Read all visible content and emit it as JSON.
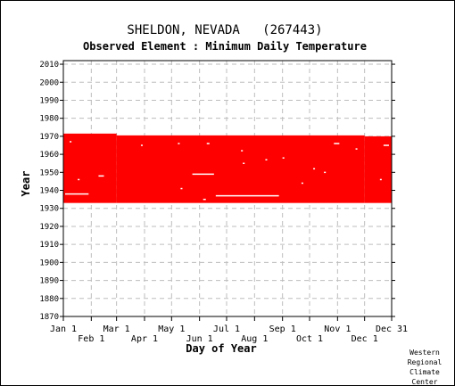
{
  "chart_data": {
    "type": "scatter",
    "title": "SHELDON, NEVADA   (267443)",
    "subtitle": "Observed Element : Minimum Daily Temperature",
    "xlabel": "Day of Year",
    "ylabel": "Year",
    "credit": [
      "Western",
      "Regional",
      "Climate",
      "Center"
    ],
    "xlim": [
      1,
      365
    ],
    "ylim": [
      1870,
      2012
    ],
    "x_ticks_upper": [
      {
        "label": "Jan 1",
        "day": 1
      },
      {
        "label": "Mar 1",
        "day": 60
      },
      {
        "label": "May 1",
        "day": 121
      },
      {
        "label": "Jul 1",
        "day": 182
      },
      {
        "label": "Sep 1",
        "day": 244
      },
      {
        "label": "Nov 1",
        "day": 305
      },
      {
        "label": "Dec 31",
        "day": 365
      }
    ],
    "x_ticks_lower": [
      {
        "label": "Feb 1",
        "day": 32
      },
      {
        "label": "Apr 1",
        "day": 91
      },
      {
        "label": "Jun 1",
        "day": 152
      },
      {
        "label": "Aug 1",
        "day": 213
      },
      {
        "label": "Oct 1",
        "day": 274
      },
      {
        "label": "Dec 1",
        "day": 335
      }
    ],
    "y_ticks": [
      2010,
      2000,
      1990,
      1980,
      1970,
      1960,
      1950,
      1940,
      1930,
      1920,
      1910,
      1900,
      1890,
      1880,
      1870
    ],
    "grid": true,
    "observed_color": "#ff0000",
    "observed_blocks": [
      {
        "day_start": 1,
        "day_end": 60,
        "year_start": 1933,
        "year_end": 1971.5
      },
      {
        "day_start": 60,
        "day_end": 335,
        "year_start": 1933,
        "year_end": 1970.5
      },
      {
        "day_start": 335,
        "day_end": 365,
        "year_start": 1933,
        "year_end": 1970
      }
    ],
    "missing_gaps": [
      {
        "year": 1938,
        "day_start": 3,
        "day_end": 29
      },
      {
        "year": 1948,
        "day_start": 40,
        "day_end": 46
      },
      {
        "year": 1949,
        "day_start": 144,
        "day_end": 168
      },
      {
        "year": 1937,
        "day_start": 170,
        "day_end": 240
      },
      {
        "year": 1935,
        "day_start": 156,
        "day_end": 159
      },
      {
        "year": 1966,
        "day_start": 160,
        "day_end": 163
      },
      {
        "year": 1965,
        "day_start": 87,
        "day_end": 89
      },
      {
        "year": 1966,
        "day_start": 128,
        "day_end": 130
      },
      {
        "year": 1967,
        "day_start": 8,
        "day_end": 10
      },
      {
        "year": 1946,
        "day_start": 17,
        "day_end": 19
      },
      {
        "year": 1941,
        "day_start": 131,
        "day_end": 133
      },
      {
        "year": 1962,
        "day_start": 198,
        "day_end": 200
      },
      {
        "year": 1957,
        "day_start": 225,
        "day_end": 227
      },
      {
        "year": 1944,
        "day_start": 265,
        "day_end": 267
      },
      {
        "year": 1966,
        "day_start": 301,
        "day_end": 307
      },
      {
        "year": 1963,
        "day_start": 325,
        "day_end": 327
      },
      {
        "year": 1952,
        "day_start": 278,
        "day_end": 280
      },
      {
        "year": 1946,
        "day_start": 352,
        "day_end": 354
      },
      {
        "year": 1965,
        "day_start": 356,
        "day_end": 362
      },
      {
        "year": 1958,
        "day_start": 244,
        "day_end": 246
      },
      {
        "year": 1950,
        "day_start": 290,
        "day_end": 292
      },
      {
        "year": 1955,
        "day_start": 200,
        "day_end": 202
      }
    ]
  }
}
